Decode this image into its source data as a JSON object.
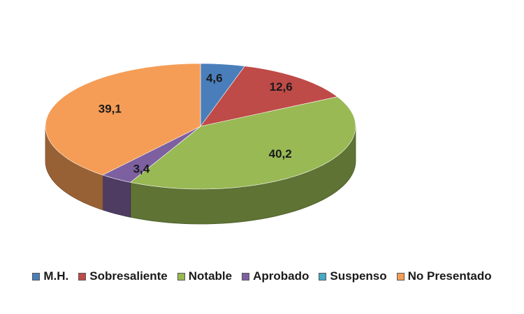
{
  "chart_data": {
    "type": "pie",
    "style": "3d-exploded-none",
    "title": "",
    "categories": [
      "M.H.",
      "Sobresaliente",
      "Notable",
      "Aprobado",
      "Suspenso",
      "No Presentado"
    ],
    "values": [
      4.6,
      12.6,
      40.2,
      3.4,
      0,
      39.1
    ],
    "data_labels": [
      "4,6",
      "12,6",
      "40,2",
      "3,4",
      "",
      "39,1"
    ],
    "colors": [
      "#4a7ebb",
      "#be4b48",
      "#98b954",
      "#7d60a0",
      "#46aac5",
      "#f59d56"
    ],
    "legend_position": "bottom"
  }
}
